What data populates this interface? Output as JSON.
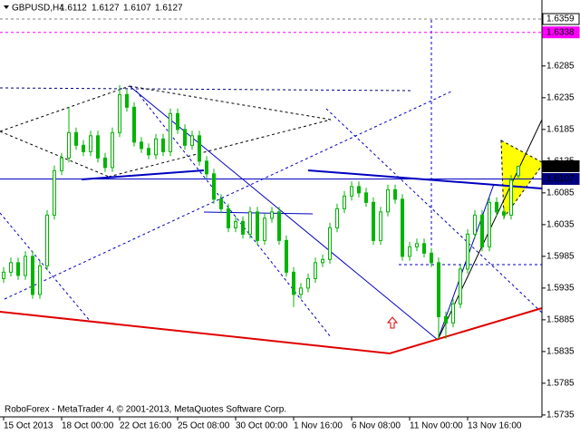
{
  "chart_data": {
    "type": "candlestick",
    "symbol": "GBPUSD,H4",
    "footer": "RoboForex - MetaTrader 4, © 2001-2013, MetaQuotes Software Corp.",
    "color": "#00b400",
    "categories": [
      "15 Oct 2013",
      null,
      null,
      null,
      null,
      null,
      null,
      null,
      "18 Oct 00:00",
      null,
      null,
      null,
      null,
      null,
      null,
      null,
      "22 Oct 16:00",
      null,
      null,
      null,
      null,
      null,
      null,
      null,
      "25 Oct 08:00",
      null,
      null,
      null,
      null,
      null,
      null,
      null,
      "30 Oct 00:00",
      null,
      null,
      null,
      null,
      null,
      null,
      null,
      "1 Nov 16:00",
      null,
      null,
      null,
      null,
      null,
      null,
      null,
      "6 Nov 08:00",
      null,
      null,
      null,
      null,
      null,
      null,
      null,
      "11 Nov 00:00",
      null,
      null,
      null,
      null,
      null,
      null,
      null,
      "13 Nov 16:00",
      null,
      null,
      null,
      null,
      null,
      null,
      null
    ],
    "open": [
      1.595,
      1.596,
      1.5975,
      1.5955,
      1.5985,
      1.5925,
      1.597,
      1.605,
      1.612,
      1.614,
      1.618,
      1.616,
      1.615,
      1.6175,
      1.614,
      1.6125,
      1.618,
      1.624,
      1.622,
      1.6165,
      1.6155,
      1.6145,
      1.617,
      1.615,
      1.621,
      1.6185,
      1.616,
      1.6175,
      1.6135,
      1.6115,
      1.6075,
      1.606,
      1.603,
      1.604,
      1.602,
      1.6055,
      1.601,
      1.6045,
      1.6055,
      1.601,
      1.596,
      1.5925,
      1.5935,
      1.595,
      1.5975,
      1.598,
      1.603,
      1.606,
      1.608,
      1.6095,
      1.6085,
      1.607,
      1.601,
      1.6055,
      1.609,
      1.6075,
      1.5985,
      1.6,
      1.6005,
      1.599,
      1.5975,
      1.589,
      1.588,
      1.591,
      1.5965,
      1.602,
      1.605,
      1.6,
      1.607,
      1.6055,
      1.605,
      1.6112
    ],
    "high": [
      1.5968,
      1.5983,
      1.5983,
      1.5993,
      1.5993,
      1.5978,
      1.6058,
      1.6128,
      1.6148,
      1.622,
      1.6188,
      1.6168,
      1.6183,
      1.6183,
      1.6148,
      1.6188,
      1.6255,
      1.6248,
      1.6228,
      1.6173,
      1.6163,
      1.6178,
      1.6178,
      1.6218,
      1.6218,
      1.6193,
      1.6183,
      1.6183,
      1.6143,
      1.6123,
      1.6083,
      1.6068,
      1.6048,
      1.6048,
      1.6063,
      1.6063,
      1.6053,
      1.6063,
      1.6063,
      1.6018,
      1.5968,
      1.5943,
      1.5958,
      1.5983,
      1.5988,
      1.6038,
      1.6068,
      1.6088,
      1.6103,
      1.6103,
      1.6093,
      1.6078,
      1.6063,
      1.6098,
      1.6098,
      1.6083,
      1.6008,
      1.6013,
      1.6013,
      1.5998,
      1.5983,
      1.5898,
      1.5918,
      1.5973,
      1.6028,
      1.6058,
      1.6058,
      1.6078,
      1.6078,
      1.6063,
      1.6113,
      1.6127
    ],
    "low": [
      1.5943,
      1.5953,
      1.5948,
      1.5948,
      1.5918,
      1.5918,
      1.5963,
      1.6043,
      1.6113,
      1.6133,
      1.6153,
      1.6143,
      1.6143,
      1.6133,
      1.6118,
      1.6118,
      1.6173,
      1.6213,
      1.6158,
      1.6148,
      1.6138,
      1.6138,
      1.6143,
      1.6143,
      1.6178,
      1.6153,
      1.6153,
      1.6128,
      1.6108,
      1.6068,
      1.6053,
      1.6023,
      1.6023,
      1.6013,
      1.6013,
      1.6003,
      1.6003,
      1.6038,
      1.6003,
      1.5953,
      1.5905,
      1.5918,
      1.5928,
      1.5943,
      1.5968,
      1.5973,
      1.6023,
      1.6053,
      1.6073,
      1.6078,
      1.6063,
      1.6003,
      1.6003,
      1.6048,
      1.6068,
      1.5978,
      1.5978,
      1.5993,
      1.5983,
      1.5968,
      1.5855,
      1.5855,
      1.5873,
      1.5903,
      1.5958,
      1.6013,
      1.5993,
      1.5993,
      1.6048,
      1.6043,
      1.6043,
      1.6107
    ],
    "close": [
      1.596,
      1.5975,
      1.5955,
      1.5985,
      1.5925,
      1.597,
      1.605,
      1.612,
      1.614,
      1.618,
      1.616,
      1.615,
      1.6175,
      1.614,
      1.6125,
      1.618,
      1.624,
      1.622,
      1.6165,
      1.6155,
      1.6145,
      1.617,
      1.615,
      1.621,
      1.6185,
      1.616,
      1.6175,
      1.6135,
      1.6115,
      1.6075,
      1.606,
      1.603,
      1.604,
      1.602,
      1.6055,
      1.601,
      1.6045,
      1.6055,
      1.601,
      1.596,
      1.5925,
      1.5935,
      1.595,
      1.5975,
      1.598,
      1.603,
      1.606,
      1.608,
      1.6095,
      1.6085,
      1.607,
      1.601,
      1.6055,
      1.609,
      1.6075,
      1.5985,
      1.6,
      1.6005,
      1.599,
      1.5975,
      1.589,
      1.588,
      1.591,
      1.5965,
      1.602,
      1.605,
      1.6,
      1.607,
      1.6055,
      1.605,
      1.6105,
      1.6127
    ],
    "ylim": [
      1.5732,
      1.6389
    ],
    "yticks": [
      1.5735,
      1.5785,
      1.5835,
      1.5885,
      1.5935,
      1.5985,
      1.6035,
      1.6085,
      1.6135,
      1.6185,
      1.6235,
      1.6285
    ],
    "price_markers": [
      {
        "value": 1.6359,
        "color": "#ffffff",
        "text_color": "#000000",
        "line_color": "#808080"
      },
      {
        "value": 1.6338,
        "color": "#ff00ff",
        "text_color": "#ffffff",
        "line_color": "#ff00ff"
      },
      {
        "value": 1.6127,
        "color": "#000000",
        "text_color": "#ffffff",
        "line_color": null
      },
      {
        "value": 1.6107,
        "color": "#000080",
        "text_color": "#ffffff",
        "line_color": "#0000c0"
      }
    ]
  }
}
